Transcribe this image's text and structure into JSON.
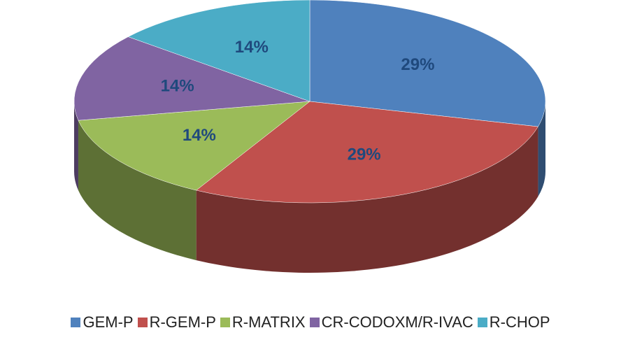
{
  "chart_data": {
    "type": "pie",
    "categories": [
      "GEM-P",
      "R-GEM-P",
      "R-MATRIX",
      "CR-CODOXM/R-IVAC",
      "R-CHOP"
    ],
    "values": [
      29,
      29,
      14,
      14,
      14
    ],
    "value_labels": [
      "29%",
      "29%",
      "14%",
      "14%",
      "14%"
    ],
    "colors": [
      "#4f81bd",
      "#c0504d",
      "#9bbb59",
      "#8064a2",
      "#4bacc6"
    ],
    "legend": "bottom"
  }
}
